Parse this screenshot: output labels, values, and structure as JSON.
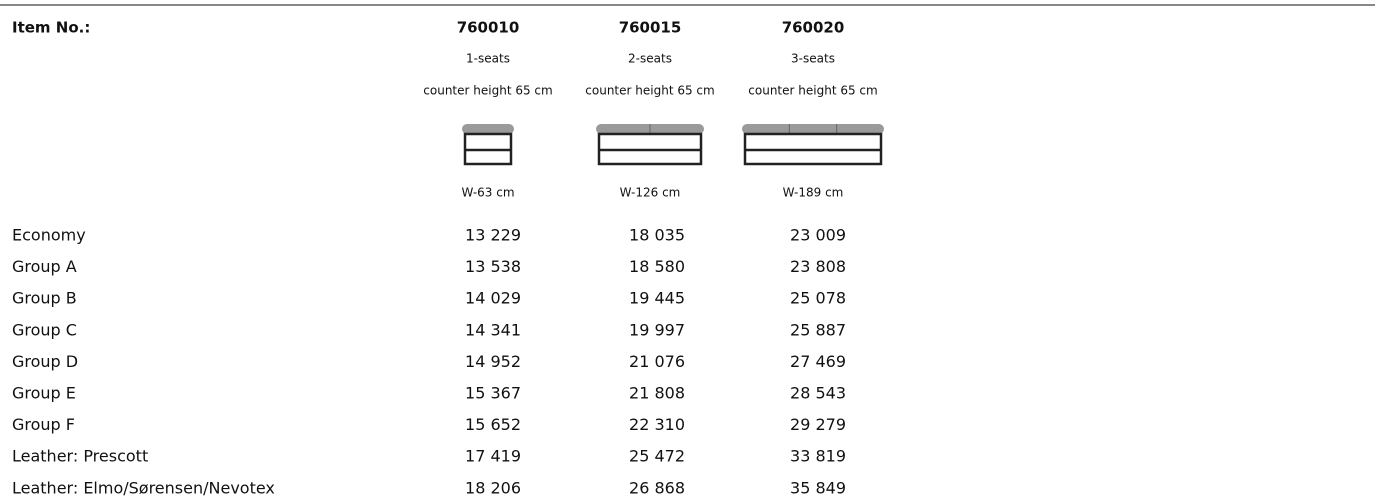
{
  "header": {
    "label": "Item No.:"
  },
  "columns": [
    {
      "item": "760010",
      "seats": "1-seats",
      "height": "counter height 65 cm",
      "width": "W-63 cm"
    },
    {
      "item": "760015",
      "seats": "2-seats",
      "height": "counter height 65 cm",
      "width": "W-126 cm"
    },
    {
      "item": "760020",
      "seats": "3-seats",
      "height": "counter height 65 cm",
      "width": "W-189 cm"
    }
  ],
  "rows": [
    [
      "Economy",
      "13 229",
      "18 035",
      "23 009"
    ],
    [
      "Group A",
      "13 538",
      "18 580",
      "23 808"
    ],
    [
      "Group B",
      "14 029",
      "19 445",
      "25 078"
    ],
    [
      "Group C",
      "14 341",
      "19 997",
      "25 887"
    ],
    [
      "Group D",
      "14 952",
      "21 076",
      "27 469"
    ],
    [
      "Group E",
      "15 367",
      "21 808",
      "28 543"
    ],
    [
      "Group F",
      "15 652",
      "22 310",
      "29 279"
    ],
    [
      "Leather: Prescott",
      "17 419",
      "25 472",
      "33 819"
    ],
    [
      "Leather: Elmo/Sørensen/Nevotex",
      "18 206",
      "26 868",
      "35 849"
    ]
  ]
}
